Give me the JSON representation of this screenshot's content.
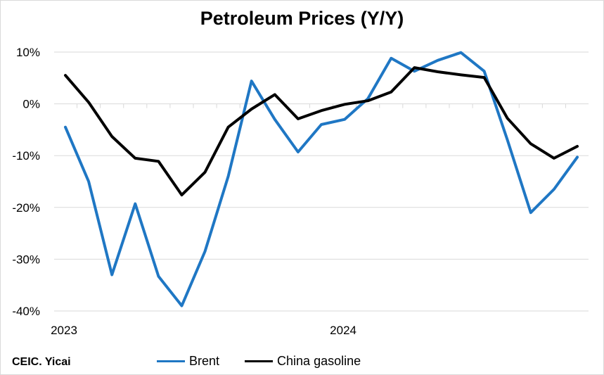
{
  "chart_data": {
    "type": "line",
    "title": "Petroleum Prices (Y/Y)",
    "xlabel": "",
    "ylabel": "",
    "ylim": [
      -40,
      10
    ],
    "y_ticks": [
      10,
      0,
      -10,
      -20,
      -30,
      -40
    ],
    "y_tick_labels": [
      "10%",
      "0%",
      "-10%",
      "-20%",
      "-30%",
      "-40%"
    ],
    "x_tick_labels": [
      {
        "label": "2023",
        "index": 0
      },
      {
        "label": "2024",
        "index": 12
      }
    ],
    "n_points": 23,
    "grid": true,
    "legend_position": "bottom",
    "series": [
      {
        "name": "Brent",
        "color": "#1f77c4",
        "values": [
          -4.5,
          -15,
          -33,
          -19.3,
          -33.3,
          -39,
          -28.5,
          -14,
          4.4,
          -3,
          -9.3,
          -4,
          -3,
          1,
          8.8,
          6.3,
          8.4,
          9.9,
          6.3,
          -7,
          -21,
          -16.5,
          -10.3
        ]
      },
      {
        "name": "China gasoline",
        "color": "#000000",
        "values": [
          5.5,
          0.3,
          -6.3,
          -10.5,
          -11.1,
          -17.6,
          -13.2,
          -4.5,
          -1,
          1.8,
          -2.9,
          -1.3,
          -0.1,
          0.6,
          2.3,
          7,
          6.2,
          5.6,
          5.1,
          -2.8,
          -7.7,
          -10.5,
          -8.2
        ]
      }
    ]
  },
  "source_note": "CEIC. Yicai"
}
